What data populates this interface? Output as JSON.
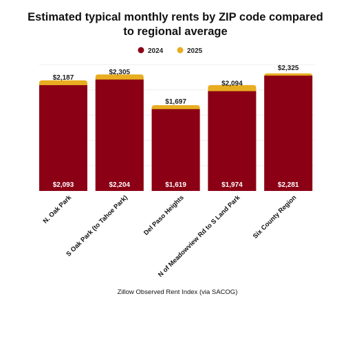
{
  "chart_data": {
    "type": "bar",
    "stacking": "overlay",
    "title": "Estimated typical monthly rents by ZIP code compared to regional average",
    "title_lines": [
      "Estimated typical monthly rents by ZIP code compared",
      "to regional average"
    ],
    "source": "Zillow Observed Rent Index (via SACOG)",
    "categories": [
      "N. Oak Park",
      "S Oak Park (to Tahoe Park)",
      "Del Paso Heights",
      "N of Meadowview Rd to S Land Park",
      "Six County Region"
    ],
    "series": [
      {
        "name": "2024",
        "color": "#8b0015",
        "values": [
          2093,
          2204,
          1619,
          1974,
          2281
        ],
        "labels": [
          "$2,093",
          "$2,204",
          "$1,619",
          "$1,974",
          "$2,281"
        ]
      },
      {
        "name": "2025",
        "color": "#e8ad20",
        "values": [
          2187,
          2305,
          1697,
          2094,
          2325
        ],
        "labels": [
          "$2,187",
          "$2,305",
          "$1,697",
          "$2,094",
          "$2,325"
        ]
      }
    ],
    "legend_position": "top-center",
    "grid": true
  }
}
